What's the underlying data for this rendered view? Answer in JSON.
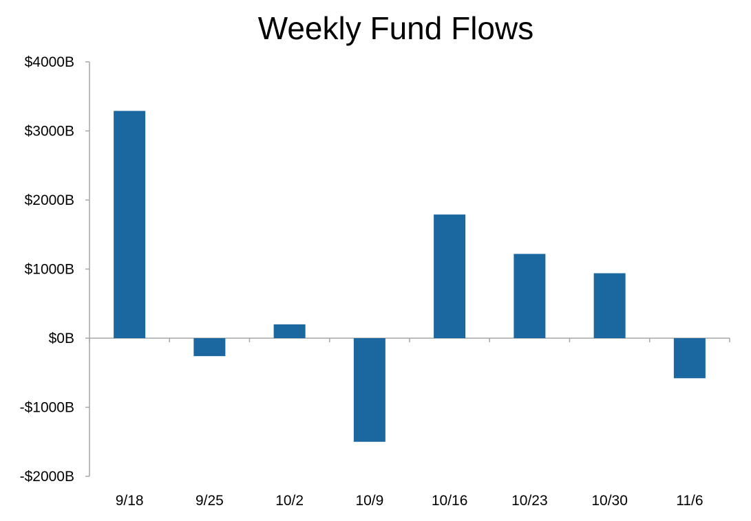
{
  "chart_data": {
    "type": "bar",
    "title": "Weekly Fund Flows",
    "xlabel": "",
    "ylabel": "",
    "categories": [
      "9/18",
      "9/25",
      "10/2",
      "10/9",
      "10/16",
      "10/23",
      "10/30",
      "11/6"
    ],
    "values": [
      3290,
      -260,
      200,
      -1500,
      1790,
      1220,
      940,
      -580
    ],
    "ylim": [
      -2000,
      4000
    ],
    "yticks": [
      4000,
      3000,
      2000,
      1000,
      0,
      -1000,
      -2000
    ],
    "ytick_labels": [
      "$4000B",
      "$3000B",
      "$2000B",
      "$1000B",
      "$0B",
      "-$1000B",
      "-$2000B"
    ],
    "bar_color": "#1b679f",
    "axis_color": "#a6a6a6",
    "grid": false,
    "legend": false
  }
}
